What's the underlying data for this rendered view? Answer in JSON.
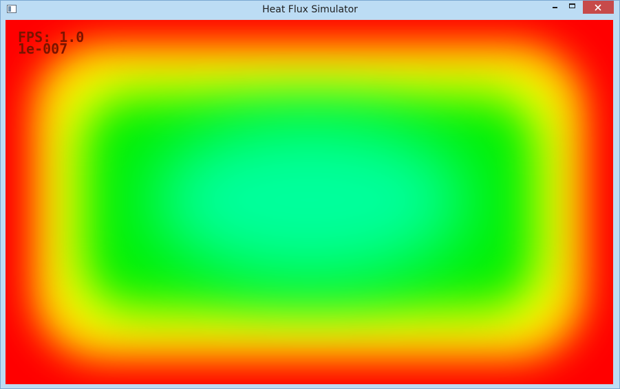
{
  "window": {
    "title": "Heat Flux Simulator"
  },
  "overlay": {
    "fps_text": "FPS: 1.0",
    "value_text": "1e-007"
  },
  "icons": {
    "app": "app-window-icon",
    "minimize": "minimize-icon",
    "maximize": "maximize-icon",
    "close": "close-icon"
  },
  "colors": {
    "hot": "#ff0000",
    "warm": "#ffff00",
    "mid": "#00f000",
    "cool": "#00ff9c",
    "close_button": "#c74a4a",
    "frame": "#bcdcf4"
  }
}
